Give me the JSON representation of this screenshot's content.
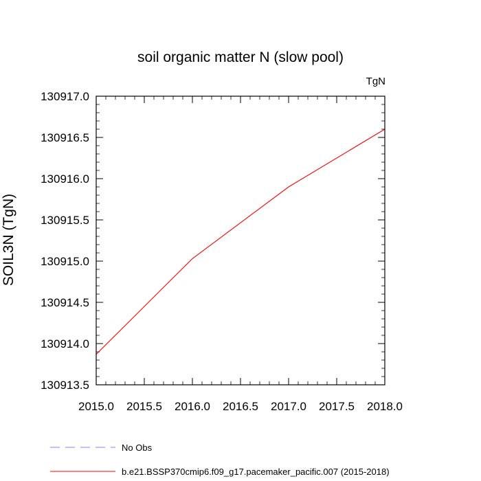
{
  "chart_data": {
    "type": "line",
    "title": "soil organic matter N (slow pool)",
    "units_label": "TgN",
    "ylabel": "SOIL3N  (TgN)",
    "xlabel": "",
    "xlim": [
      2015.0,
      2018.0
    ],
    "ylim": [
      130913.5,
      130917.0
    ],
    "x_ticks": [
      "2015.0",
      "2015.5",
      "2016.0",
      "2016.5",
      "2017.0",
      "2017.5",
      "2018.0"
    ],
    "y_ticks": [
      "130913.5",
      "130914.0",
      "130914.5",
      "130915.0",
      "130915.5",
      "130916.0",
      "130916.5",
      "130917.0"
    ],
    "grid": false,
    "legend_position": "bottom",
    "series": [
      {
        "name": "b.e21.BSSP370cmip6.f09_g17.pacemaker_pacific.007 (2015-2018)",
        "color": "#ff0000",
        "style": "solid",
        "x": [
          2015.0,
          2016.0,
          2017.0,
          2018.0
        ],
        "y": [
          130913.87,
          130915.03,
          130915.9,
          130916.6
        ]
      }
    ],
    "legend": [
      {
        "label": "No Obs",
        "color": "#8080ff",
        "style": "dashed"
      },
      {
        "label": "b.e21.BSSP370cmip6.f09_g17.pacemaker_pacific.007 (2015-2018)",
        "color": "#ff0000",
        "style": "solid"
      }
    ]
  }
}
